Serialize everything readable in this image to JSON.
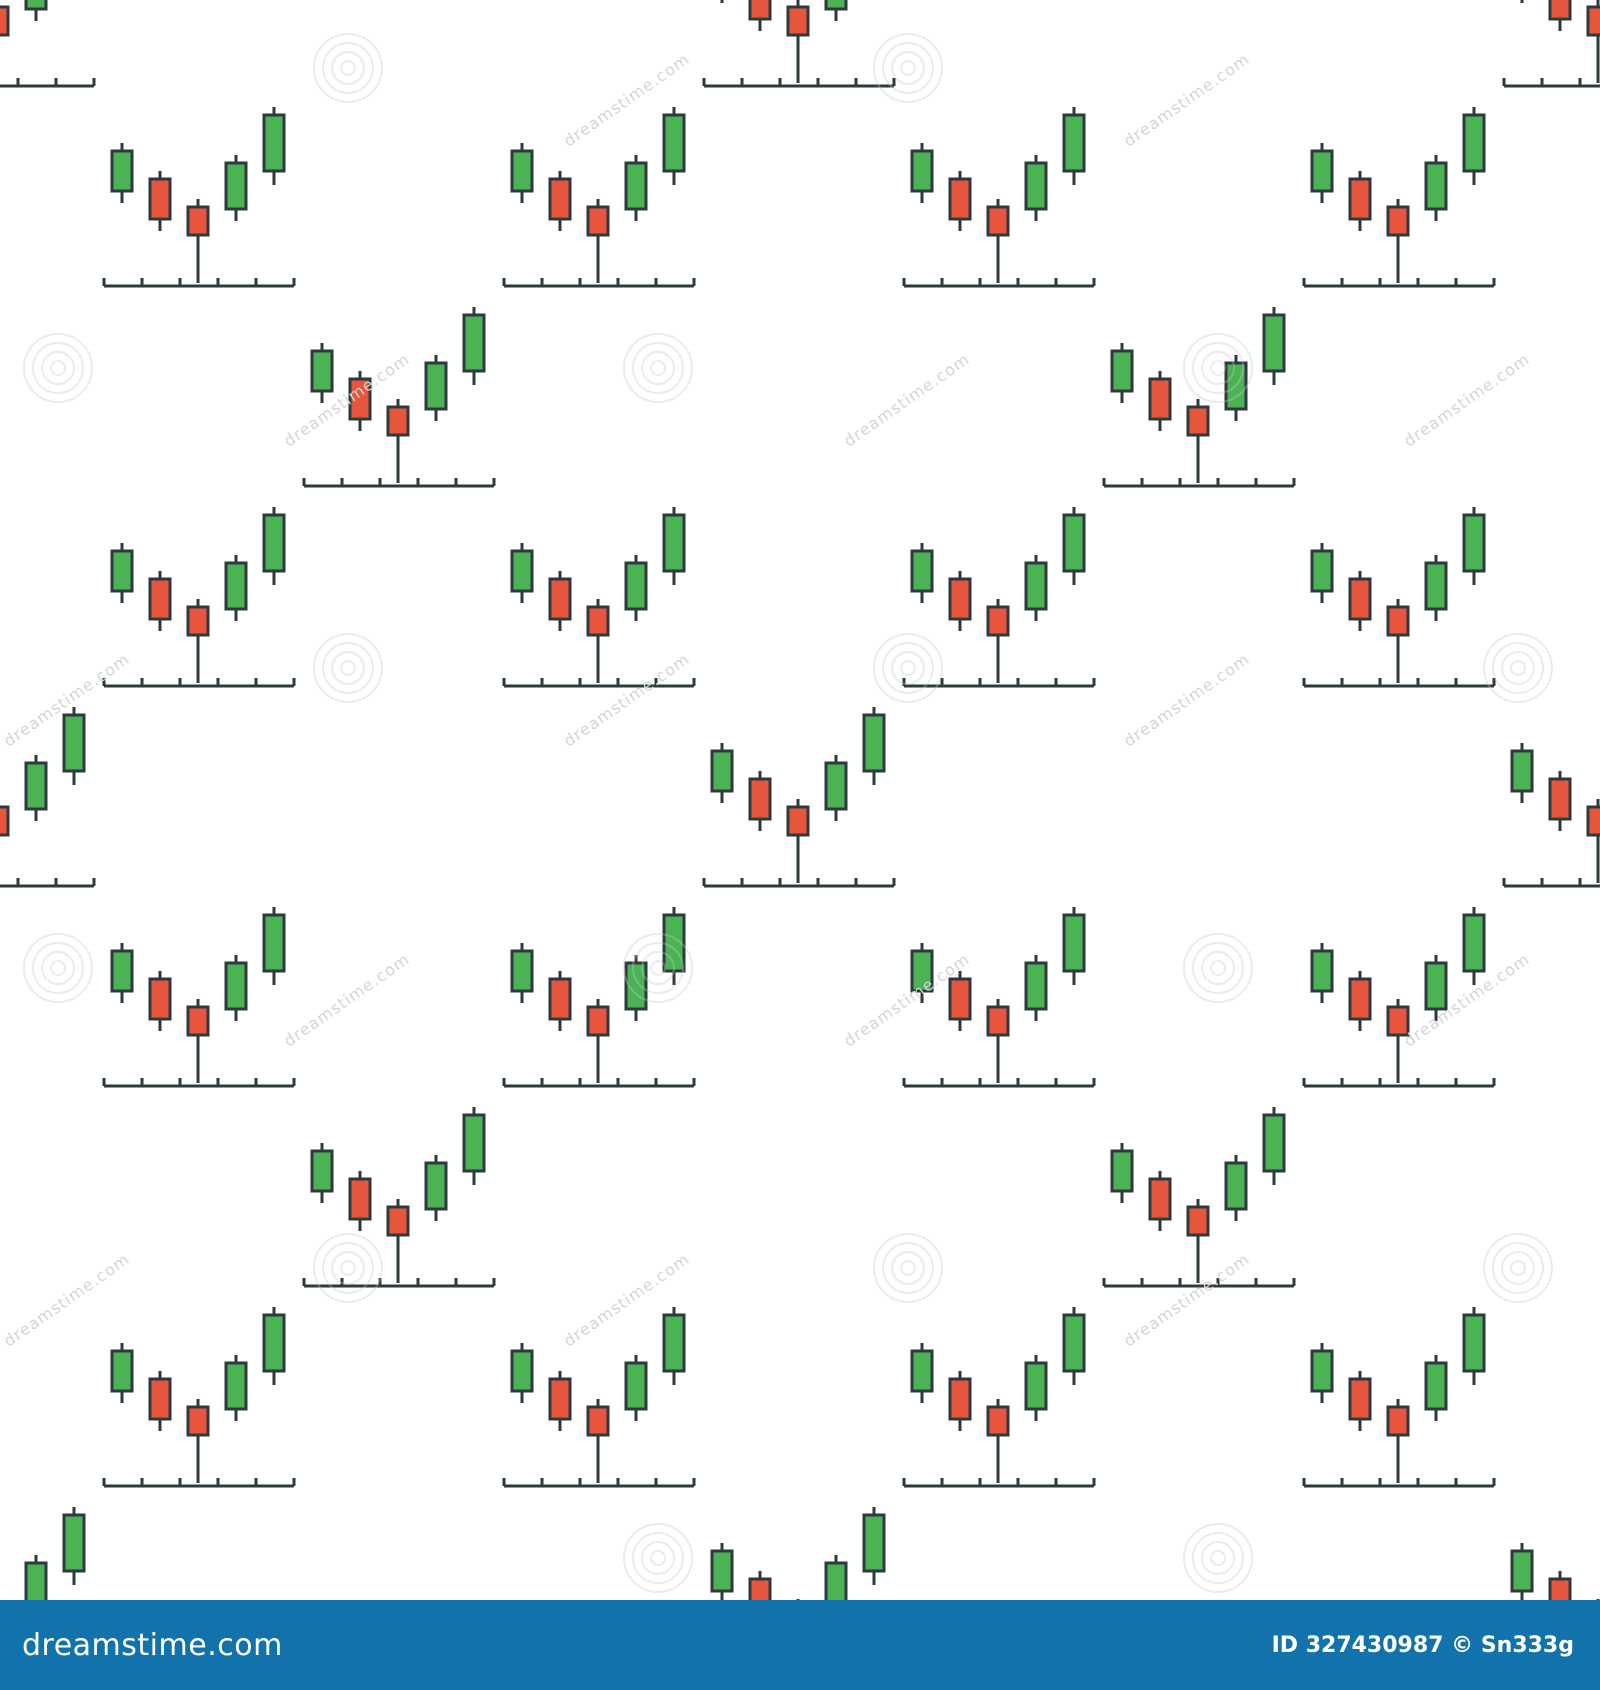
{
  "pattern": {
    "motif": "v-shaped-candlestick-chart-icon",
    "candle_sequence": [
      "bullish",
      "bearish",
      "bearish",
      "bullish",
      "bullish"
    ],
    "colors": {
      "bullish": "#4cb355",
      "bearish": "#e8553d",
      "outline": "#2d3a3e",
      "background": "#ffffff"
    }
  },
  "watermark": {
    "text": "dreamstime.com",
    "icon": "swirl-icon"
  },
  "footer": {
    "logo": "dreamstime.com",
    "id_label": "ID 327430987",
    "copyright_symbol": "©",
    "author": "Sn333g",
    "background_color": "#1273ac",
    "text_color": "#ffffff"
  }
}
